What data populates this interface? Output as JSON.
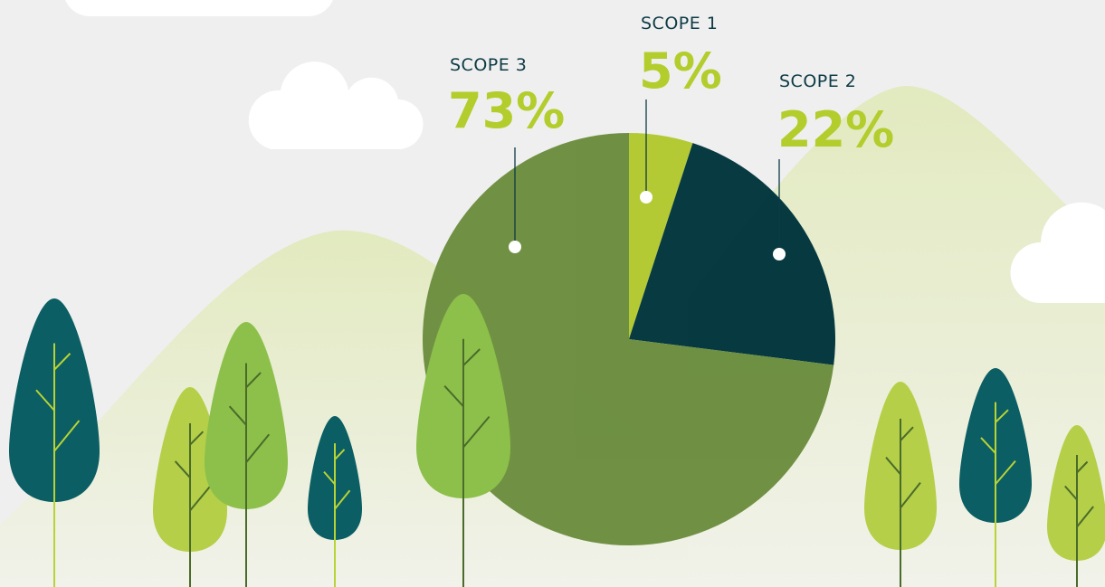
{
  "chart_data": {
    "type": "pie",
    "categories": [
      "SCOPE 1",
      "SCOPE 2",
      "SCOPE 3"
    ],
    "values": [
      5,
      22,
      73
    ],
    "value_labels": [
      "5%",
      "22%",
      "73%"
    ],
    "colors": [
      "#b3c92e",
      "#00353c",
      "#6b8d3e"
    ]
  }
}
